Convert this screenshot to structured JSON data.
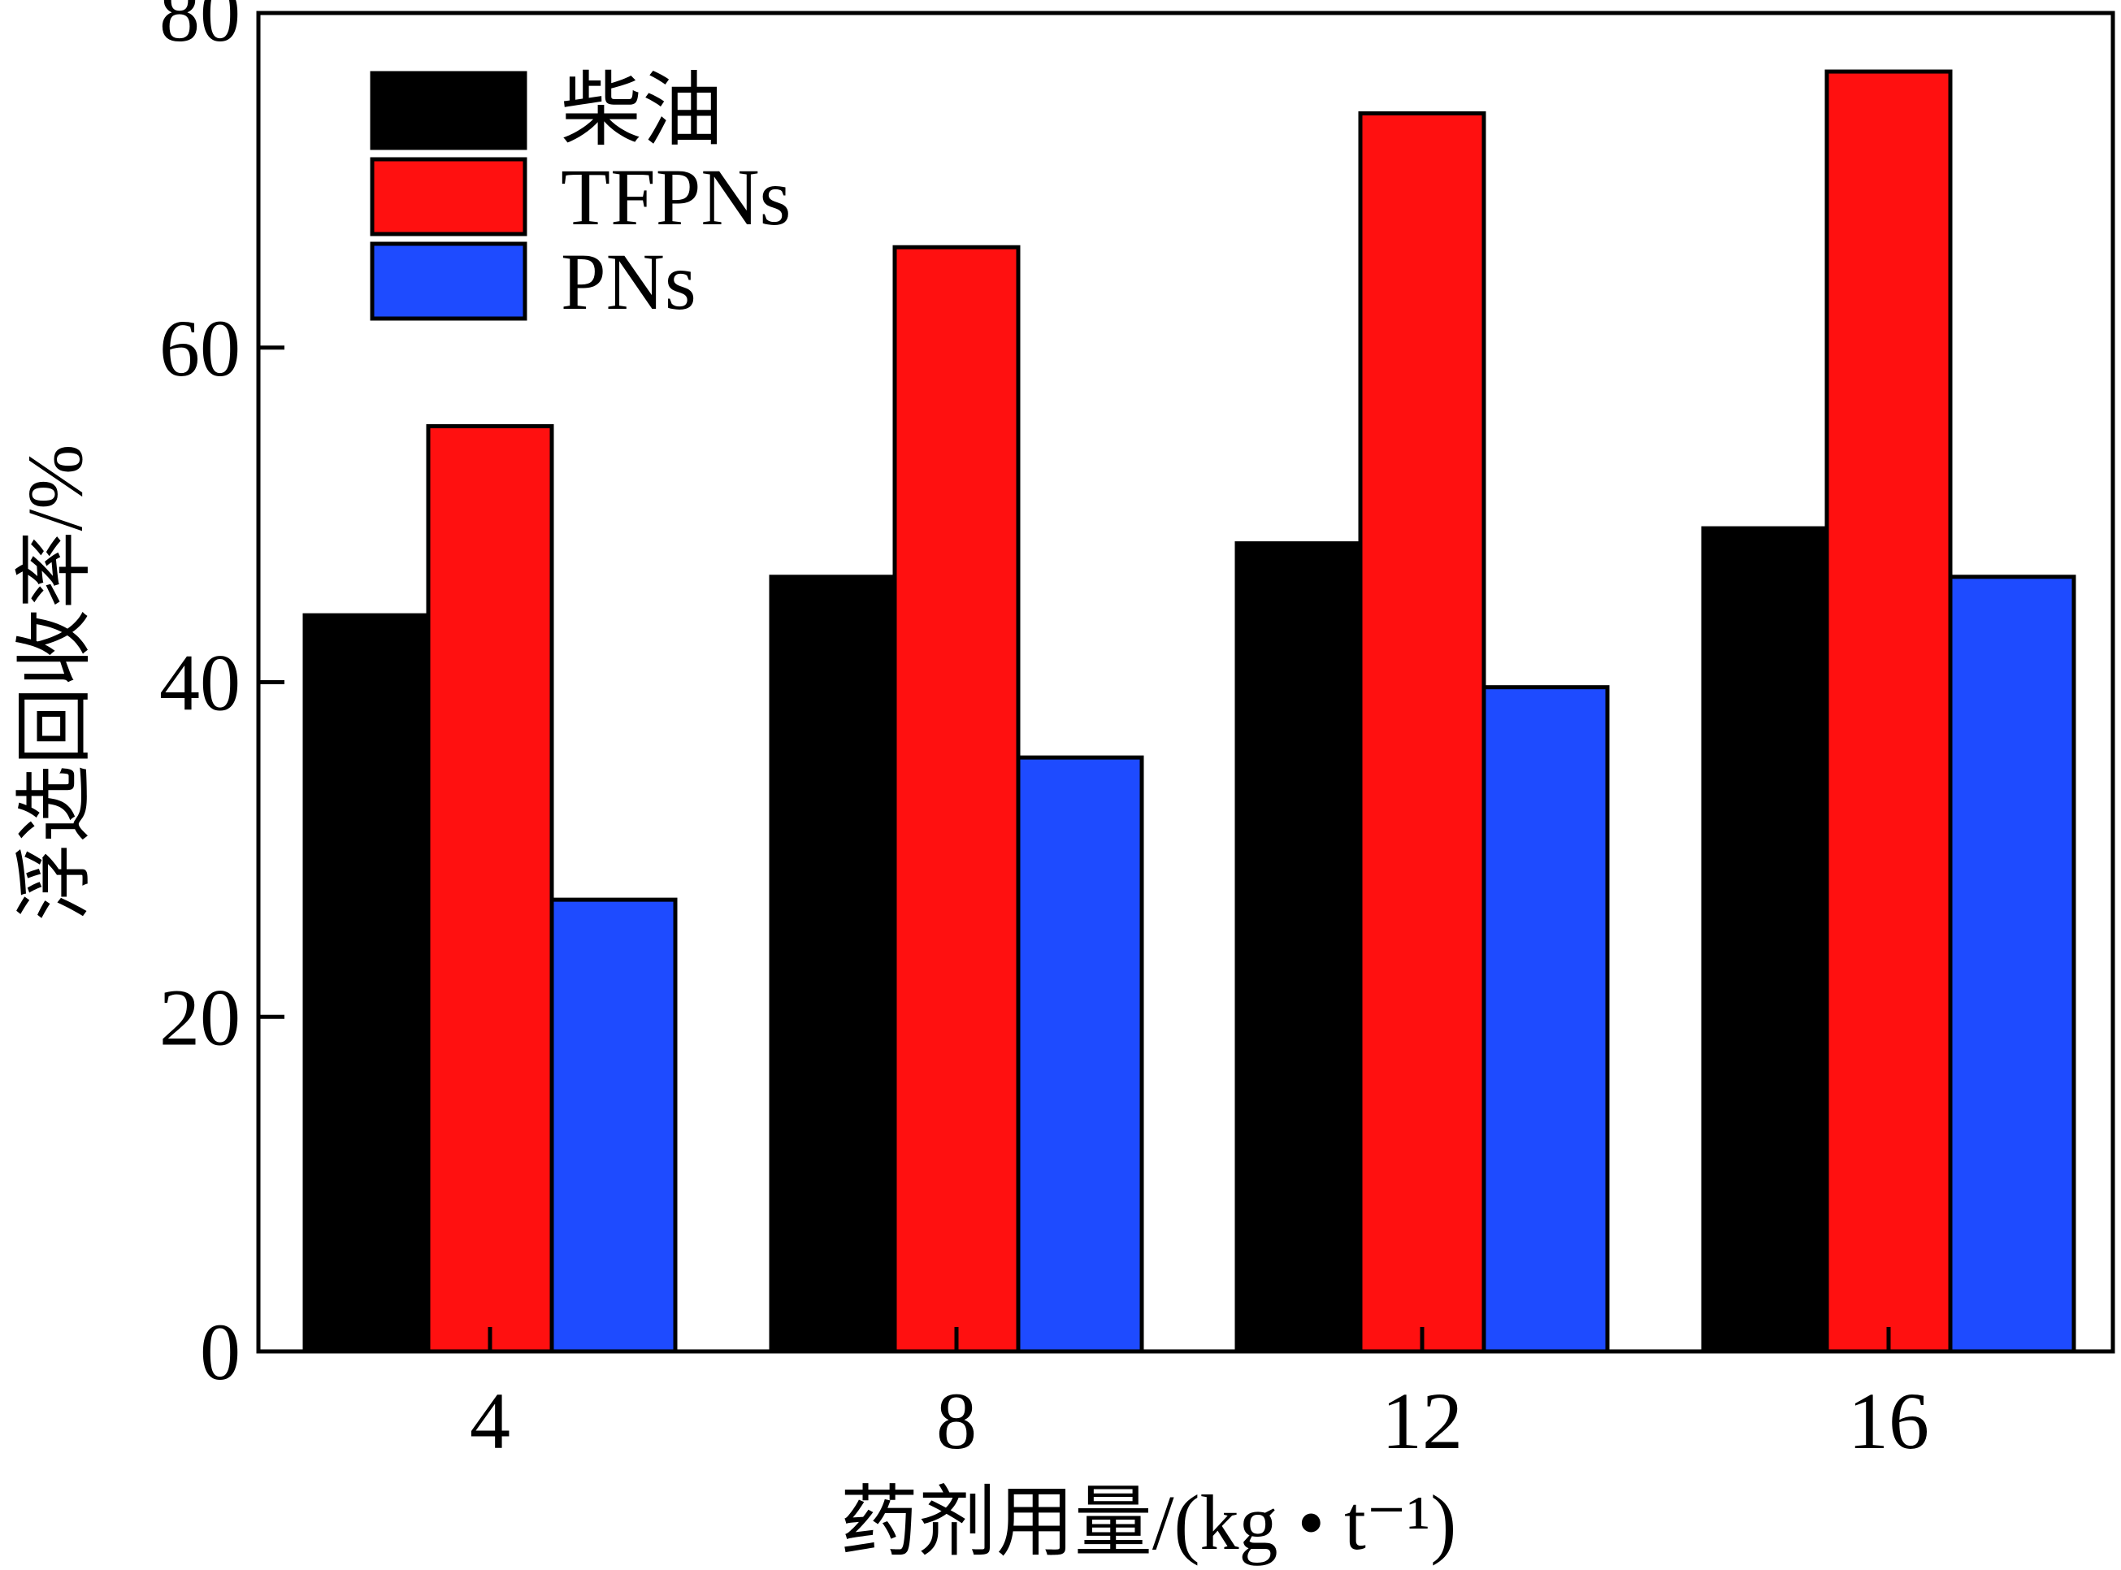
{
  "chart_data": {
    "type": "bar",
    "title": "",
    "xlabel": "药剂用量/(kg • t⁻¹)",
    "ylabel": "浮选回收率/%",
    "categories": [
      "4",
      "8",
      "12",
      "16"
    ],
    "ylim": [
      0,
      80
    ],
    "yticks": [
      0,
      20,
      40,
      60,
      80
    ],
    "yticks_labels": [
      "0",
      "20",
      "40",
      "60",
      "80"
    ],
    "grid": false,
    "legend_position": "top-left",
    "series": [
      {
        "name": "柴油",
        "color": "#000000",
        "values": [
          44.0,
          46.3,
          48.3,
          49.2
        ]
      },
      {
        "name": "TFPNs",
        "color": "#ff1010",
        "values": [
          55.3,
          66.0,
          74.0,
          76.5
        ]
      },
      {
        "name": "PNs",
        "color": "#1e4bff",
        "values": [
          27.0,
          35.5,
          39.7,
          46.3
        ]
      }
    ]
  }
}
